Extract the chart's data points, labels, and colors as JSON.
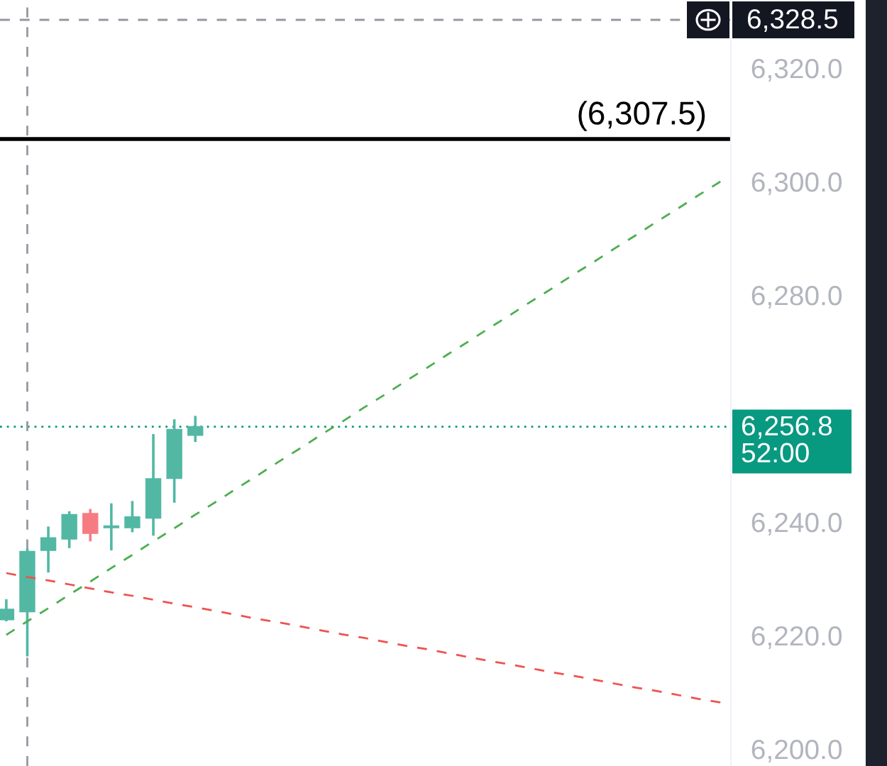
{
  "chart_data": {
    "type": "candlestick",
    "categories": [
      null,
      null,
      null,
      null,
      null,
      null,
      null,
      null,
      null,
      null,
      null,
      null,
      null,
      null,
      null,
      null,
      null,
      null,
      null,
      null,
      null,
      null,
      null,
      null,
      null,
      null,
      null,
      null,
      null,
      null,
      null,
      null,
      null,
      null,
      null
    ],
    "ohlc": [
      [
        6222.8,
        6226.4,
        6222.5,
        6224.6
      ],
      [
        6224.2,
        6235.3,
        6216.3,
        6234.8
      ],
      [
        6235.0,
        6239.2,
        6231.1,
        6237.2
      ],
      [
        6237.0,
        6241.9,
        6235.4,
        6241.3
      ],
      [
        6241.5,
        6242.3,
        6236.6,
        6238.0
      ],
      [
        6239.0,
        6243.3,
        6235.0,
        6239.3
      ],
      [
        6239.0,
        6243.7,
        6238.2,
        6240.9
      ],
      [
        6240.7,
        6255.5,
        6237.6,
        6247.6
      ],
      [
        6247.7,
        6258.1,
        6243.4,
        6256.3
      ],
      [
        6255.3,
        6258.7,
        6254.1,
        6256.8
      ],
      null,
      null,
      null,
      null,
      null,
      null,
      null,
      null,
      null,
      null,
      null,
      null,
      null,
      null,
      null,
      null,
      null,
      null,
      null,
      null,
      null,
      null,
      null,
      null,
      null
    ],
    "colors": [
      "#52b8a4",
      "#52b8a4",
      "#52b8a4",
      "#52b8a4",
      "#f77c82",
      "#52b8a4",
      "#52b8a4",
      "#52b8a4",
      "#52b8a4",
      "#52b8a4",
      null,
      null,
      null,
      null,
      null,
      null,
      null,
      null,
      null,
      null,
      null,
      null,
      null,
      null,
      null,
      null,
      null,
      null,
      null,
      null,
      null,
      null,
      null,
      null,
      null
    ],
    "series": [
      {
        "type": "line",
        "color": "#4caf50",
        "line_style": "dashed",
        "values": [
          6220.1,
          6222.5,
          6224.8,
          6227.2,
          6229.5,
          6231.9,
          6234.2,
          6236.6,
          6238.9,
          6241.3,
          6243.6,
          6246.0,
          6248.3,
          6250.7,
          6253.0,
          6255.4,
          6257.7,
          6260.1,
          6262.4,
          6264.8,
          6267.1,
          6269.5,
          6271.8,
          6274.2,
          6276.5,
          6278.9,
          6281.2,
          6283.6,
          6285.9,
          6288.3,
          6290.6,
          6293.0,
          6295.3,
          6297.7,
          6300.0
        ]
      },
      {
        "type": "line",
        "color": "#ef5350",
        "line_style": "dashed",
        "values": [
          6231.0,
          6230.3,
          6229.7,
          6229.0,
          6228.3,
          6227.6,
          6227.0,
          6226.3,
          6225.6,
          6225.0,
          6224.3,
          6223.6,
          6222.9,
          6222.3,
          6221.6,
          6220.9,
          6220.2,
          6219.6,
          6218.9,
          6218.2,
          6217.6,
          6216.9,
          6216.2,
          6215.5,
          6214.9,
          6214.2,
          6213.5,
          6212.9,
          6212.2,
          6211.5,
          6210.8,
          6210.2,
          6209.5,
          6208.8,
          6208.2
        ]
      }
    ],
    "ylim": [
      6197,
      6332
    ],
    "yticks": [
      {
        "value": 6200,
        "label": "6,200.0"
      },
      {
        "value": 6220,
        "label": "6,220.0"
      },
      {
        "value": 6240,
        "label": "6,240.0"
      },
      {
        "value": 6280,
        "label": "6,280.0"
      },
      {
        "value": 6300,
        "label": "6,300.0"
      },
      {
        "value": 6320,
        "label": "6,320.0"
      }
    ],
    "ref_lines": [
      {
        "axis": "y",
        "value": 6307.5,
        "label": "(6,307.5)",
        "color": "#000000",
        "line_style": "solid"
      },
      {
        "axis": "y",
        "value": 6256.8,
        "label": "6,256.8",
        "color": "#089981",
        "line_style": "dotted"
      },
      {
        "axis": "y",
        "value": 6328.5,
        "label": "6,328.5",
        "color": "#9598a1",
        "line_style": "dashed"
      }
    ],
    "annotations": [
      "52:00"
    ],
    "tick_labels": "y"
  }
}
